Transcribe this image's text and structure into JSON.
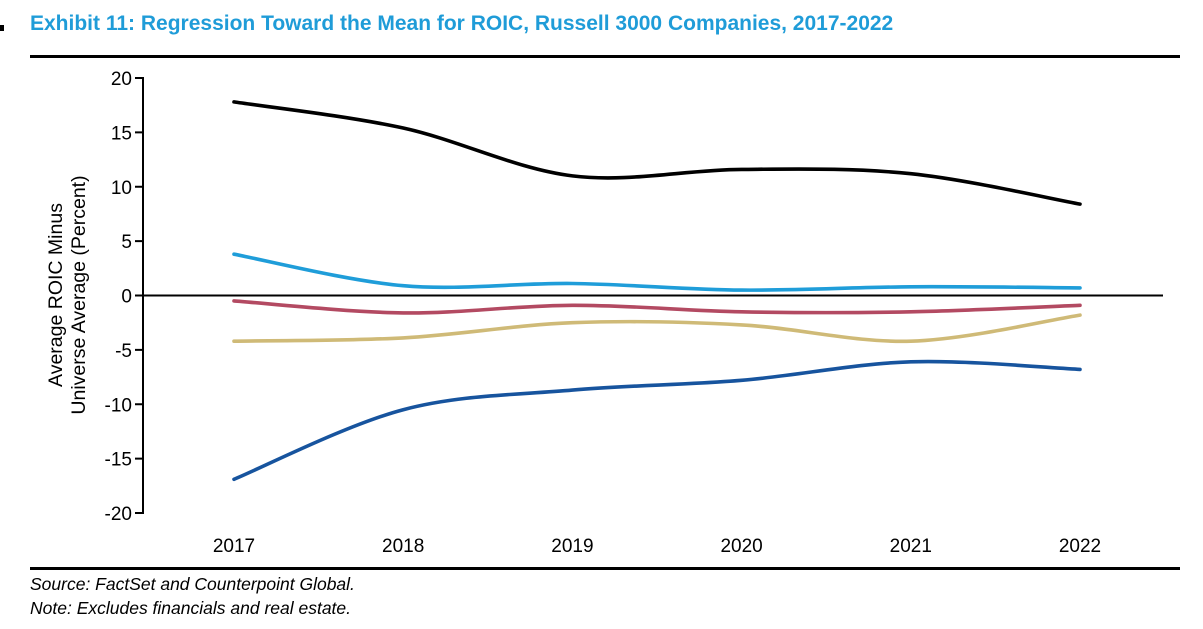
{
  "page": {
    "title": "Exhibit 11: Regression Toward the Mean for ROIC, Russell 3000 Companies, 2017-2022",
    "title_color": "#1F9CD8",
    "source_line": "Source: FactSet and Counterpoint Global.",
    "note_line": "Note: Excludes financials and real estate."
  },
  "chart_data": {
    "type": "line",
    "title": "Regression Toward the Mean for ROIC, Russell 3000 Companies, 2017-2022",
    "x": [
      2017,
      2018,
      2019,
      2020,
      2021,
      2022
    ],
    "series": [
      {
        "name": "black-line",
        "color": "#000000",
        "values": [
          17.8,
          15.4,
          11.0,
          11.6,
          11.2,
          8.4
        ]
      },
      {
        "name": "light-blue-line",
        "color": "#1F9DD9",
        "values": [
          3.8,
          0.9,
          1.1,
          0.5,
          0.8,
          0.7
        ]
      },
      {
        "name": "crimson-line",
        "color": "#B34A62",
        "values": [
          -0.5,
          -1.6,
          -0.9,
          -1.5,
          -1.5,
          -0.9
        ]
      },
      {
        "name": "tan-line",
        "color": "#CFBA77",
        "values": [
          -4.2,
          -3.9,
          -2.5,
          -2.7,
          -4.2,
          -1.8
        ]
      },
      {
        "name": "dark-blue-line",
        "color": "#17549E",
        "values": [
          -16.9,
          -10.5,
          -8.7,
          -7.8,
          -6.1,
          -6.8
        ]
      }
    ],
    "ylabel_line1": "Average ROIC Minus",
    "ylabel_line2": "Universe Average (Percent)",
    "xlabel": "",
    "yticks": [
      20,
      15,
      10,
      5,
      0,
      -5,
      -10,
      -15,
      -20
    ],
    "ylim": [
      -20,
      20
    ],
    "xtick_labels": [
      "2017",
      "2018",
      "2019",
      "2020",
      "2021",
      "2022"
    ],
    "grid": false,
    "legend_position": "none",
    "zero_line": true,
    "line_style": "smoothed"
  }
}
